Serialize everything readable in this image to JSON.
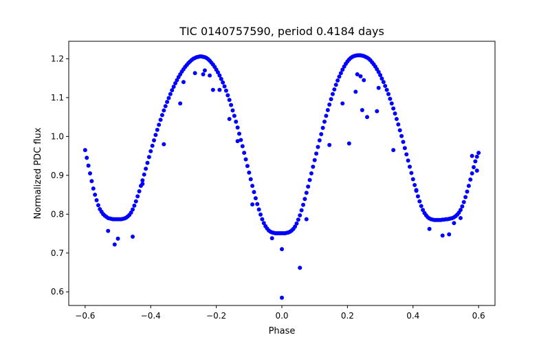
{
  "chart_data": {
    "type": "scatter",
    "title": "TIC 0140757590, period 0.4184 days",
    "xlabel": "Phase",
    "ylabel": "Normalized PDC flux",
    "xlim": [
      -0.65,
      0.65
    ],
    "ylim": [
      0.565,
      1.245
    ],
    "xticks": [
      -0.6,
      -0.4,
      -0.2,
      0.0,
      0.2,
      0.4,
      0.6
    ],
    "xtick_labels": [
      "−0.6",
      "−0.4",
      "−0.2",
      "0.0",
      "0.2",
      "0.4",
      "0.6"
    ],
    "yticks": [
      0.6,
      0.7,
      0.8,
      0.9,
      1.0,
      1.1,
      1.2
    ],
    "ytick_labels": [
      "0.6",
      "0.7",
      "0.8",
      "0.9",
      "1.0",
      "1.1",
      "1.2"
    ],
    "grid": false,
    "marker_color": "#0000ff",
    "series": [
      {
        "points": [
          [
            -0.6,
            0.965
          ],
          [
            -0.595,
            0.945
          ],
          [
            -0.59,
            0.925
          ],
          [
            -0.585,
            0.905
          ],
          [
            -0.58,
            0.885
          ],
          [
            -0.575,
            0.866
          ],
          [
            -0.57,
            0.85
          ],
          [
            -0.565,
            0.836
          ],
          [
            -0.56,
            0.823
          ],
          [
            -0.555,
            0.813
          ],
          [
            -0.55,
            0.806
          ],
          [
            -0.545,
            0.8
          ],
          [
            -0.54,
            0.796
          ],
          [
            -0.535,
            0.793
          ],
          [
            -0.53,
            0.79
          ],
          [
            -0.525,
            0.789
          ],
          [
            -0.52,
            0.788
          ],
          [
            -0.515,
            0.787
          ],
          [
            -0.51,
            0.787
          ],
          [
            -0.505,
            0.787
          ],
          [
            -0.5,
            0.787
          ],
          [
            -0.495,
            0.787
          ],
          [
            -0.49,
            0.787
          ],
          [
            -0.485,
            0.788
          ],
          [
            -0.48,
            0.789
          ],
          [
            -0.475,
            0.791
          ],
          [
            -0.47,
            0.794
          ],
          [
            -0.465,
            0.798
          ],
          [
            -0.46,
            0.804
          ],
          [
            -0.455,
            0.812
          ],
          [
            -0.45,
            0.822
          ],
          [
            -0.445,
            0.833
          ],
          [
            -0.44,
            0.846
          ],
          [
            -0.435,
            0.859
          ],
          [
            -0.43,
            0.873
          ],
          [
            -0.425,
            0.887
          ],
          [
            -0.42,
            0.902
          ],
          [
            -0.415,
            0.917
          ],
          [
            -0.41,
            0.932
          ],
          [
            -0.405,
            0.947
          ],
          [
            -0.4,
            0.962
          ],
          [
            -0.395,
            0.976
          ],
          [
            -0.39,
            0.99
          ],
          [
            -0.385,
            1.004
          ],
          [
            -0.38,
            1.017
          ],
          [
            -0.375,
            1.03
          ],
          [
            -0.37,
            1.043
          ],
          [
            -0.365,
            1.055
          ],
          [
            -0.36,
            1.067
          ],
          [
            -0.355,
            1.078
          ],
          [
            -0.35,
            1.089
          ],
          [
            -0.345,
            1.099
          ],
          [
            -0.34,
            1.109
          ],
          [
            -0.335,
            1.119
          ],
          [
            -0.33,
            1.128
          ],
          [
            -0.325,
            1.137
          ],
          [
            -0.32,
            1.145
          ],
          [
            -0.315,
            1.153
          ],
          [
            -0.31,
            1.16
          ],
          [
            -0.305,
            1.167
          ],
          [
            -0.3,
            1.173
          ],
          [
            -0.295,
            1.179
          ],
          [
            -0.29,
            1.184
          ],
          [
            -0.285,
            1.189
          ],
          [
            -0.28,
            1.193
          ],
          [
            -0.275,
            1.197
          ],
          [
            -0.27,
            1.2
          ],
          [
            -0.265,
            1.202
          ],
          [
            -0.26,
            1.204
          ],
          [
            -0.255,
            1.205
          ],
          [
            -0.25,
            1.206
          ],
          [
            -0.245,
            1.206
          ],
          [
            -0.24,
            1.205
          ],
          [
            -0.235,
            1.204
          ],
          [
            -0.23,
            1.202
          ],
          [
            -0.225,
            1.199
          ],
          [
            -0.22,
            1.195
          ],
          [
            -0.215,
            1.19
          ],
          [
            -0.21,
            1.185
          ],
          [
            -0.205,
            1.179
          ],
          [
            -0.2,
            1.172
          ],
          [
            -0.195,
            1.165
          ],
          [
            -0.19,
            1.157
          ],
          [
            -0.185,
            1.148
          ],
          [
            -0.18,
            1.139
          ],
          [
            -0.175,
            1.129
          ],
          [
            -0.17,
            1.118
          ],
          [
            -0.165,
            1.106
          ],
          [
            -0.16,
            1.094
          ],
          [
            -0.155,
            1.081
          ],
          [
            -0.15,
            1.067
          ],
          [
            -0.145,
            1.053
          ],
          [
            -0.14,
            1.038
          ],
          [
            -0.135,
            1.023
          ],
          [
            -0.13,
            1.007
          ],
          [
            -0.125,
            0.991
          ],
          [
            -0.12,
            0.975
          ],
          [
            -0.115,
            0.958
          ],
          [
            -0.11,
            0.941
          ],
          [
            -0.105,
            0.924
          ],
          [
            -0.1,
            0.907
          ],
          [
            -0.095,
            0.89
          ],
          [
            -0.09,
            0.873
          ],
          [
            -0.085,
            0.857
          ],
          [
            -0.08,
            0.841
          ],
          [
            -0.075,
            0.826
          ],
          [
            -0.07,
            0.812
          ],
          [
            -0.065,
            0.799
          ],
          [
            -0.06,
            0.787
          ],
          [
            -0.055,
            0.777
          ],
          [
            -0.05,
            0.769
          ],
          [
            -0.045,
            0.763
          ],
          [
            -0.04,
            0.758
          ],
          [
            -0.035,
            0.755
          ],
          [
            -0.03,
            0.753
          ],
          [
            -0.025,
            0.752
          ],
          [
            -0.02,
            0.751
          ],
          [
            -0.015,
            0.751
          ],
          [
            -0.01,
            0.751
          ],
          [
            -0.005,
            0.751
          ],
          [
            0.0,
            0.751
          ],
          [
            0.005,
            0.751
          ],
          [
            0.01,
            0.751
          ],
          [
            0.015,
            0.752
          ],
          [
            0.02,
            0.753
          ],
          [
            0.025,
            0.755
          ],
          [
            0.03,
            0.758
          ],
          [
            0.035,
            0.762
          ],
          [
            0.04,
            0.768
          ],
          [
            0.045,
            0.776
          ],
          [
            0.05,
            0.786
          ],
          [
            0.055,
            0.797
          ],
          [
            0.06,
            0.81
          ],
          [
            0.065,
            0.824
          ],
          [
            0.07,
            0.839
          ],
          [
            0.075,
            0.855
          ],
          [
            0.08,
            0.871
          ],
          [
            0.085,
            0.888
          ],
          [
            0.09,
            0.905
          ],
          [
            0.095,
            0.922
          ],
          [
            0.1,
            0.939
          ],
          [
            0.105,
            0.956
          ],
          [
            0.11,
            0.973
          ],
          [
            0.115,
            0.99
          ],
          [
            0.12,
            1.006
          ],
          [
            0.125,
            1.022
          ],
          [
            0.13,
            1.038
          ],
          [
            0.135,
            1.053
          ],
          [
            0.14,
            1.068
          ],
          [
            0.145,
            1.082
          ],
          [
            0.15,
            1.096
          ],
          [
            0.155,
            1.109
          ],
          [
            0.16,
            1.121
          ],
          [
            0.165,
            1.133
          ],
          [
            0.17,
            1.144
          ],
          [
            0.175,
            1.154
          ],
          [
            0.18,
            1.163
          ],
          [
            0.185,
            1.172
          ],
          [
            0.19,
            1.18
          ],
          [
            0.195,
            1.187
          ],
          [
            0.2,
            1.193
          ],
          [
            0.205,
            1.198
          ],
          [
            0.21,
            1.202
          ],
          [
            0.215,
            1.205
          ],
          [
            0.22,
            1.207
          ],
          [
            0.225,
            1.208
          ],
          [
            0.23,
            1.209
          ],
          [
            0.235,
            1.209
          ],
          [
            0.24,
            1.209
          ],
          [
            0.245,
            1.208
          ],
          [
            0.25,
            1.207
          ],
          [
            0.255,
            1.205
          ],
          [
            0.26,
            1.203
          ],
          [
            0.265,
            1.2
          ],
          [
            0.27,
            1.196
          ],
          [
            0.275,
            1.191
          ],
          [
            0.28,
            1.186
          ],
          [
            0.285,
            1.18
          ],
          [
            0.29,
            1.173
          ],
          [
            0.295,
            1.166
          ],
          [
            0.3,
            1.158
          ],
          [
            0.305,
            1.149
          ],
          [
            0.31,
            1.14
          ],
          [
            0.315,
            1.13
          ],
          [
            0.32,
            1.12
          ],
          [
            0.325,
            1.109
          ],
          [
            0.33,
            1.097
          ],
          [
            0.335,
            1.085
          ],
          [
            0.34,
            1.072
          ],
          [
            0.345,
            1.059
          ],
          [
            0.35,
            1.045
          ],
          [
            0.355,
            1.031
          ],
          [
            0.36,
            1.016
          ],
          [
            0.365,
            1.001
          ],
          [
            0.37,
            0.986
          ],
          [
            0.375,
            0.97
          ],
          [
            0.38,
            0.954
          ],
          [
            0.385,
            0.938
          ],
          [
            0.39,
            0.922
          ],
          [
            0.395,
            0.906
          ],
          [
            0.4,
            0.89
          ],
          [
            0.405,
            0.875
          ],
          [
            0.41,
            0.86
          ],
          [
            0.415,
            0.846
          ],
          [
            0.42,
            0.833
          ],
          [
            0.425,
            0.821
          ],
          [
            0.43,
            0.811
          ],
          [
            0.435,
            0.803
          ],
          [
            0.44,
            0.797
          ],
          [
            0.445,
            0.792
          ],
          [
            0.45,
            0.789
          ],
          [
            0.455,
            0.787
          ],
          [
            0.46,
            0.786
          ],
          [
            0.465,
            0.785
          ],
          [
            0.47,
            0.785
          ],
          [
            0.475,
            0.785
          ],
          [
            0.48,
            0.785
          ],
          [
            0.485,
            0.785
          ],
          [
            0.49,
            0.786
          ],
          [
            0.495,
            0.786
          ],
          [
            0.5,
            0.787
          ],
          [
            0.505,
            0.787
          ],
          [
            0.51,
            0.788
          ],
          [
            0.515,
            0.789
          ],
          [
            0.52,
            0.79
          ],
          [
            0.525,
            0.792
          ],
          [
            0.53,
            0.795
          ],
          [
            0.535,
            0.799
          ],
          [
            0.54,
            0.804
          ],
          [
            0.545,
            0.811
          ],
          [
            0.55,
            0.82
          ],
          [
            0.555,
            0.831
          ],
          [
            0.56,
            0.844
          ],
          [
            0.565,
            0.858
          ],
          [
            0.57,
            0.873
          ],
          [
            0.575,
            0.889
          ],
          [
            0.58,
            0.905
          ],
          [
            0.585,
            0.921
          ],
          [
            0.59,
            0.936
          ],
          [
            0.595,
            0.948
          ],
          [
            0.6,
            0.958
          ],
          [
            -0.53,
            0.757
          ],
          [
            -0.51,
            0.722
          ],
          [
            -0.5,
            0.737
          ],
          [
            -0.455,
            0.742
          ],
          [
            -0.425,
            0.878
          ],
          [
            -0.36,
            0.98
          ],
          [
            -0.31,
            1.085
          ],
          [
            -0.3,
            1.14
          ],
          [
            -0.265,
            1.163
          ],
          [
            -0.24,
            1.16
          ],
          [
            -0.235,
            1.17
          ],
          [
            -0.22,
            1.157
          ],
          [
            -0.21,
            1.12
          ],
          [
            -0.19,
            1.12
          ],
          [
            -0.16,
            1.045
          ],
          [
            -0.135,
            0.988
          ],
          [
            -0.09,
            0.825
          ],
          [
            -0.03,
            0.738
          ],
          [
            0.0,
            0.71
          ],
          [
            0.0,
            0.585
          ],
          [
            0.055,
            0.662
          ],
          [
            0.075,
            0.787
          ],
          [
            0.145,
            0.978
          ],
          [
            0.185,
            1.085
          ],
          [
            0.205,
            0.982
          ],
          [
            0.225,
            1.115
          ],
          [
            0.23,
            1.16
          ],
          [
            0.24,
            1.155
          ],
          [
            0.245,
            1.068
          ],
          [
            0.25,
            1.145
          ],
          [
            0.26,
            1.05
          ],
          [
            0.29,
            1.065
          ],
          [
            0.295,
            1.125
          ],
          [
            0.34,
            0.965
          ],
          [
            0.41,
            0.862
          ],
          [
            0.45,
            0.762
          ],
          [
            0.49,
            0.745
          ],
          [
            0.51,
            0.748
          ],
          [
            0.525,
            0.777
          ],
          [
            0.545,
            0.79
          ],
          [
            0.58,
            0.95
          ],
          [
            0.595,
            0.912
          ]
        ]
      }
    ]
  }
}
